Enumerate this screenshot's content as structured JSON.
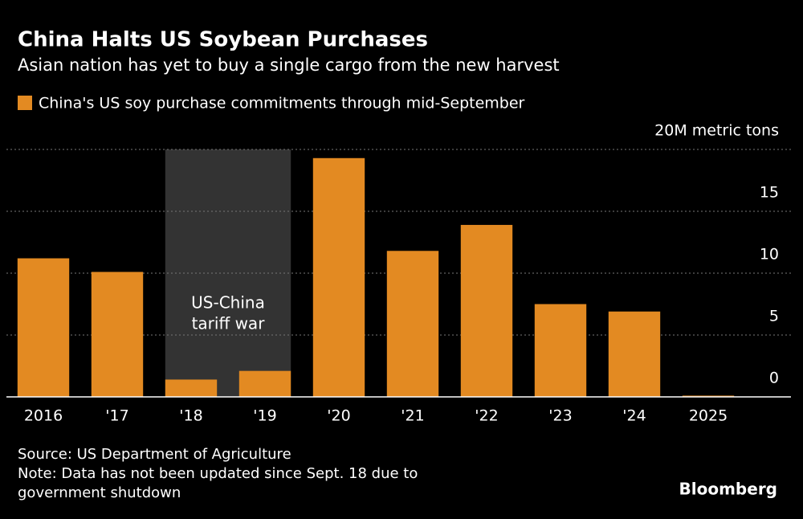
{
  "chart_data": {
    "type": "bar",
    "title": "China Halts US Soybean Purchases",
    "subtitle": "Asian nation has yet to buy a single cargo from the new harvest",
    "categories": [
      "2016",
      "'17",
      "'18",
      "'19",
      "'20",
      "'21",
      "'22",
      "'23",
      "'24",
      "2025"
    ],
    "series": [
      {
        "name": "China's US soy purchase commitments through mid-September",
        "color": "#e38a22",
        "values": [
          11.2,
          10.1,
          1.4,
          2.1,
          19.3,
          11.8,
          13.9,
          7.5,
          6.9,
          0.1
        ]
      }
    ],
    "ylim": [
      0,
      20
    ],
    "yticks": [
      0,
      5,
      10,
      15,
      {
        "value": 20,
        "label": "20M metric tons"
      }
    ],
    "grid": true,
    "shaded_categories": [
      "'18",
      "'19"
    ],
    "annotation": [
      "US-China",
      "tariff war"
    ],
    "source": "Source: US Department of Agriculture",
    "note": [
      "Note: Data has not been updated since Sept. 18 due to",
      "government shutdown"
    ],
    "brand": "Bloomberg"
  }
}
